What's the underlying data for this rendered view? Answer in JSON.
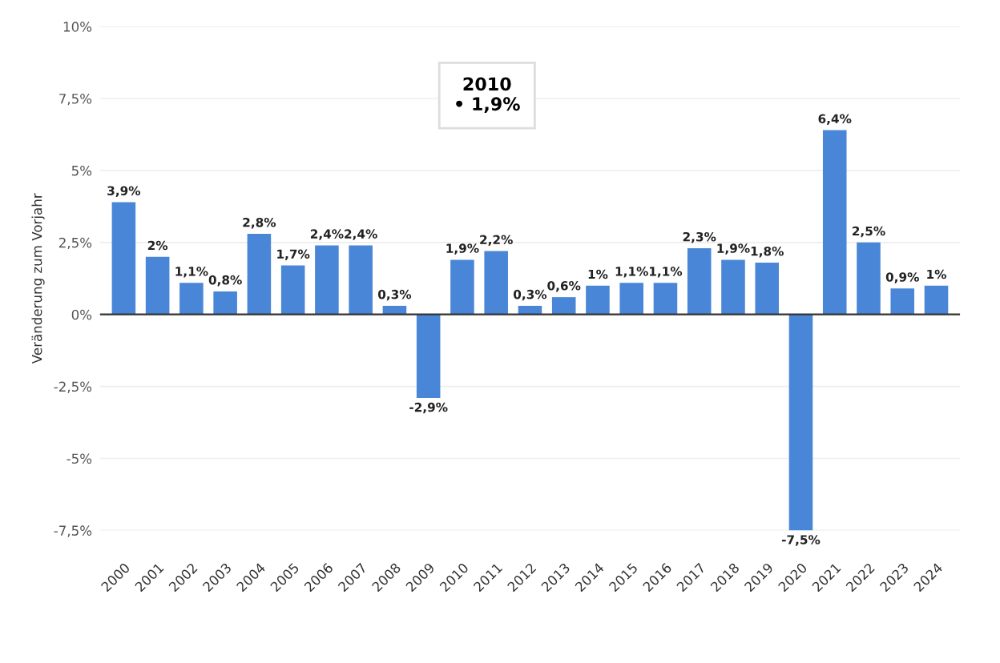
{
  "chart_data": {
    "type": "bar",
    "ylabel": "Veränderung zum Vorjahr",
    "categories": [
      "2000",
      "2001",
      "2002",
      "2003",
      "2004",
      "2005",
      "2006",
      "2007",
      "2008",
      "2009",
      "2010",
      "2011",
      "2012",
      "2013",
      "2014",
      "2015",
      "2016",
      "2017",
      "2018",
      "2019",
      "2020",
      "2021",
      "2022",
      "2023",
      "2024"
    ],
    "values": [
      3.9,
      2,
      1.1,
      0.8,
      2.8,
      1.7,
      2.4,
      2.4,
      0.3,
      -2.9,
      1.9,
      2.2,
      0.3,
      0.6,
      1,
      1.1,
      1.1,
      2.3,
      1.9,
      1.8,
      -7.5,
      6.4,
      2.5,
      0.9,
      1
    ],
    "value_labels": [
      "3,9%",
      "2%",
      "1,1%",
      "0,8%",
      "2,8%",
      "1,7%",
      "2,4%",
      "2,4%",
      "0,3%",
      "-2,9%",
      "1,9%",
      "2,2%",
      "0,3%",
      "0,6%",
      "1%",
      "1,1%",
      "1,1%",
      "2,3%",
      "1,9%",
      "1,8%",
      "-7,5%",
      "6,4%",
      "2,5%",
      "0,9%",
      "1%"
    ],
    "color": "#4a86d8",
    "ylim": [
      -7.5,
      10
    ],
    "yticks": [
      {
        "value": -7.5,
        "label": "-7,5%"
      },
      {
        "value": -5,
        "label": "-5%"
      },
      {
        "value": -2.5,
        "label": "-2,5%"
      },
      {
        "value": 0,
        "label": "0%"
      },
      {
        "value": 2.5,
        "label": "2,5%"
      },
      {
        "value": 5,
        "label": "5%"
      },
      {
        "value": 7.5,
        "label": "7,5%"
      },
      {
        "value": 10,
        "label": "10%"
      }
    ],
    "grid": "y",
    "annotations": [
      "2010\n• 1,9%"
    ]
  }
}
